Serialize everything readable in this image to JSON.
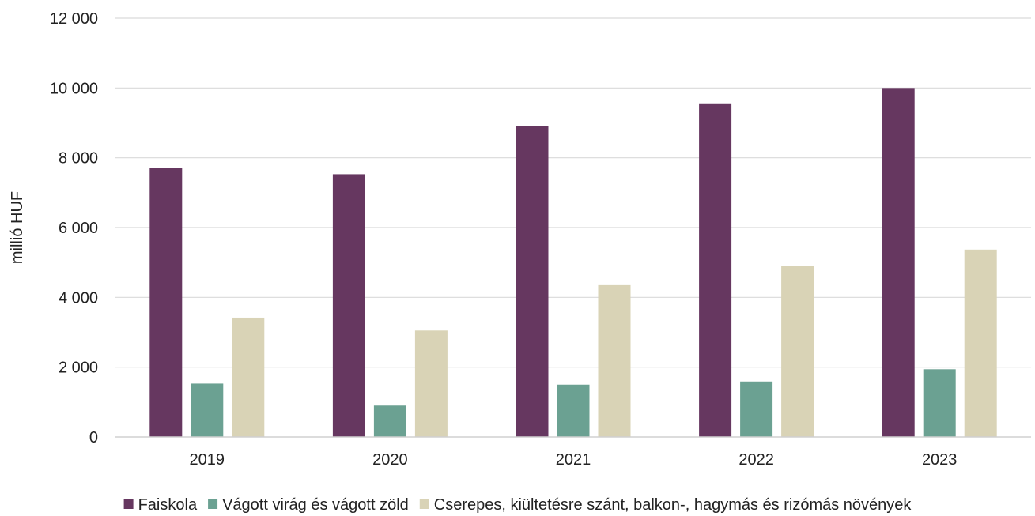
{
  "chart_data": {
    "type": "bar",
    "categories": [
      "2019",
      "2020",
      "2021",
      "2022",
      "2023"
    ],
    "series": [
      {
        "name": "Faiskola",
        "color": "#663760",
        "values": [
          7700,
          7530,
          8920,
          9560,
          10000
        ]
      },
      {
        "name": "Vágott virág és vágott zöld",
        "color": "#6ba192",
        "values": [
          1530,
          900,
          1500,
          1590,
          1940
        ]
      },
      {
        "name": "Cserepes, kiültetésre szánt, balkon-, hagymás és rizómás növények",
        "color": "#d9d3b6",
        "values": [
          3420,
          3050,
          4350,
          4900,
          5370
        ]
      }
    ],
    "ylabel": "millió HUF",
    "ylim": [
      0,
      12000
    ],
    "yticks": [
      0,
      2000,
      4000,
      6000,
      8000,
      10000,
      12000
    ],
    "ytick_labels": [
      "0",
      "2 000",
      "4 000",
      "6 000",
      "8 000",
      "10 000",
      "12 000"
    ],
    "grid": true,
    "legend_position": "bottom"
  }
}
